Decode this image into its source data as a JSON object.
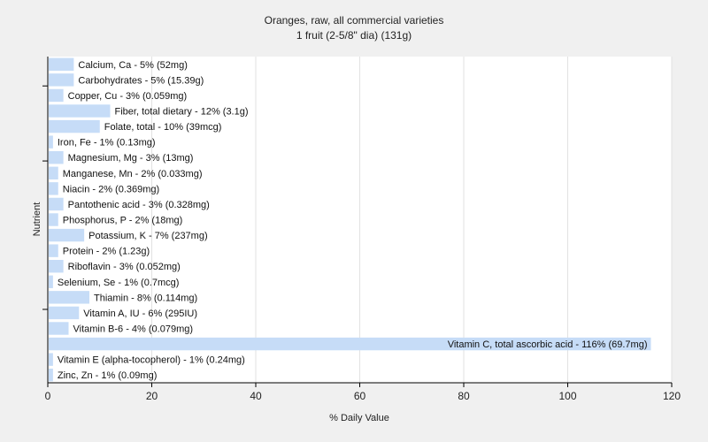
{
  "chart_data": {
    "type": "bar",
    "orientation": "horizontal",
    "title": "Oranges, raw, all commercial varieties",
    "subtitle": "1 fruit (2-5/8\" dia) (131g)",
    "xlabel": "% Daily Value",
    "ylabel": "Nutrient",
    "xlim": [
      0,
      120
    ],
    "xticks": [
      0,
      20,
      40,
      60,
      80,
      100,
      120
    ],
    "grid": true,
    "bar_color": "#c6dcf7",
    "plot_background": "#ffffff",
    "categories": [
      "Calcium, Ca",
      "Carbohydrates",
      "Copper, Cu",
      "Fiber, total dietary",
      "Folate, total",
      "Iron, Fe",
      "Magnesium, Mg",
      "Manganese, Mn",
      "Niacin",
      "Pantothenic acid",
      "Phosphorus, P",
      "Potassium, K",
      "Protein",
      "Riboflavin",
      "Selenium, Se",
      "Thiamin",
      "Vitamin A, IU",
      "Vitamin B-6",
      "Vitamin C, total ascorbic acid",
      "Vitamin E (alpha-tocopherol)",
      "Zinc, Zn"
    ],
    "values": [
      5,
      5,
      3,
      12,
      10,
      1,
      3,
      2,
      2,
      3,
      2,
      7,
      2,
      3,
      1,
      8,
      6,
      4,
      116,
      1,
      1
    ],
    "labels": [
      "Calcium, Ca - 5% (52mg)",
      "Carbohydrates - 5% (15.39g)",
      "Copper, Cu - 3% (0.059mg)",
      "Fiber, total dietary - 12% (3.1g)",
      "Folate, total - 10% (39mcg)",
      "Iron, Fe - 1% (0.13mg)",
      "Magnesium, Mg - 3% (13mg)",
      "Manganese, Mn - 2% (0.033mg)",
      "Niacin - 2% (0.369mg)",
      "Pantothenic acid - 3% (0.328mg)",
      "Phosphorus, P - 2% (18mg)",
      "Potassium, K - 7% (237mg)",
      "Protein - 2% (1.23g)",
      "Riboflavin - 3% (0.052mg)",
      "Selenium, Se - 1% (0.7mcg)",
      "Thiamin - 8% (0.114mg)",
      "Vitamin A, IU - 6% (295IU)",
      "Vitamin B-6 - 4% (0.079mg)",
      "Vitamin C, total ascorbic acid - 116% (69.7mg)",
      "Vitamin E (alpha-tocopherol) - 1% (0.24mg)",
      "Zinc, Zn - 1% (0.09mg)"
    ]
  }
}
